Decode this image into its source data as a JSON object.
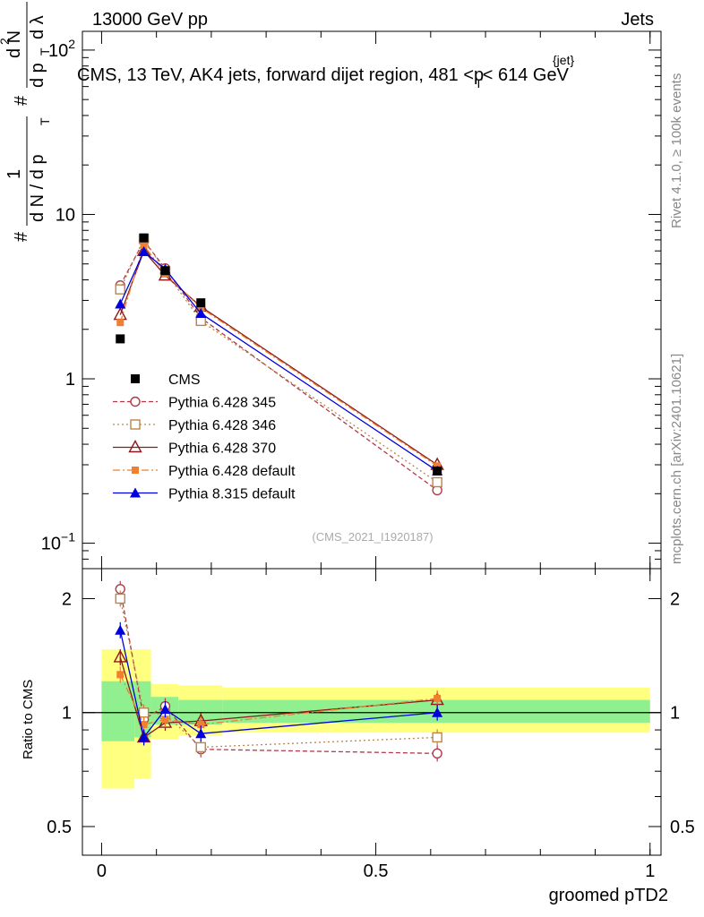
{
  "header": {
    "left": "13000 GeV pp",
    "right": "Jets"
  },
  "side_labels": {
    "rivet": "Rivet 4.1.0, ≥ 100k events",
    "mcplots": "mcplots.cern.ch [arXiv:2401.10621]"
  },
  "colors": {
    "cms": "#000000",
    "p345": "#b03a48",
    "p346": "#b8864b",
    "p370": "#8b1a1a",
    "pdef": "#f08030",
    "p8": "#0000dd",
    "band_outer": "#ffff80",
    "band_inner": "#90f090"
  },
  "chart_data": [
    {
      "type": "line",
      "title": "CMS, 13 TeV, AK4 jets, forward dijet region, 481 <p_T^{jet}< 614 GeV",
      "title_parts": {
        "main": "CMS, 13 TeV, AK4 jets, forward dijet region, 481 <p",
        "sub": "T",
        "sup": "{jet}",
        "end": "< 614 GeV"
      },
      "ylabel": "1/dN/dp_T dN^2/(dp_T dλ)",
      "ylabel_parts": {
        "hash1": "#",
        "one": "1",
        "denom": "d N / d p",
        "denomsub": "T",
        "hash2": "#",
        "num": "d N",
        "numsup": "2",
        "den2": "d p",
        "den2sub": "T",
        "dl": "d λ"
      },
      "yscale": "log",
      "ylim": [
        0.07,
        130
      ],
      "yticks": [
        "10^{−1}",
        "1",
        "10",
        "10^{2}"
      ],
      "ytick_parts": [
        {
          "base": "10",
          "exp": "−1",
          "value": 0.1
        },
        {
          "base": "1",
          "exp": "",
          "value": 1
        },
        {
          "base": "10",
          "exp": "",
          "value": 10
        },
        {
          "base": "10",
          "exp": "2",
          "value": 100
        }
      ],
      "watermark": "(CMS_2021_I1920187)",
      "x": [
        0.034,
        0.077,
        0.116,
        0.181,
        0.612
      ],
      "legend_position": "lower-left",
      "series": [
        {
          "name": "CMS",
          "key": "cms",
          "values": [
            1.75,
            7.2,
            4.55,
            2.9,
            0.275
          ]
        },
        {
          "name": "Pythia 6.428 345",
          "key": "p345",
          "values": [
            3.7,
            6.9,
            4.7,
            2.35,
            0.21
          ]
        },
        {
          "name": "Pythia 6.428 346",
          "key": "p346",
          "values": [
            3.5,
            7.1,
            4.5,
            2.25,
            0.235
          ]
        },
        {
          "name": "Pythia 6.428 370",
          "key": "p370",
          "values": [
            2.45,
            6.0,
            4.25,
            2.75,
            0.3
          ]
        },
        {
          "name": "Pythia 6.428 default",
          "key": "pdef",
          "values": [
            2.2,
            6.5,
            4.35,
            2.7,
            0.295
          ]
        },
        {
          "name": "Pythia 8.315 default",
          "key": "p8",
          "values": [
            2.85,
            5.95,
            4.65,
            2.5,
            0.275
          ]
        }
      ]
    },
    {
      "type": "line",
      "title": "",
      "xlabel": "groomed pTD2",
      "ylabel": "Ratio to CMS",
      "yscale": "log",
      "ylim": [
        0.42,
        2.4
      ],
      "yticks": [
        "0.5",
        "1",
        "2"
      ],
      "xlim": [
        -0.035,
        1.02
      ],
      "xticks": [
        "0",
        "0.5",
        "1"
      ],
      "bins": [
        {
          "lo": 0.0,
          "hi": 0.06,
          "band_outer": [
            0.63,
            1.47
          ],
          "band_inner": [
            0.84,
            1.21
          ]
        },
        {
          "lo": 0.06,
          "hi": 0.09,
          "band_outer": [
            0.67,
            1.47
          ],
          "band_inner": [
            0.86,
            1.21
          ]
        },
        {
          "lo": 0.09,
          "hi": 0.14,
          "band_outer": [
            0.85,
            1.19
          ],
          "band_inner": [
            0.93,
            1.1
          ]
        },
        {
          "lo": 0.14,
          "hi": 0.22,
          "band_outer": [
            0.87,
            1.18
          ],
          "band_inner": [
            0.93,
            1.08
          ]
        },
        {
          "lo": 0.22,
          "hi": 1.0,
          "band_outer": [
            0.885,
            1.165
          ],
          "band_inner": [
            0.94,
            1.08
          ]
        }
      ],
      "series": [
        {
          "name": "Pythia 6.428 345",
          "key": "p345",
          "values": [
            2.12,
            0.96,
            1.04,
            0.8,
            0.78
          ]
        },
        {
          "name": "Pythia 6.428 346",
          "key": "p346",
          "values": [
            2.0,
            1.0,
            0.99,
            0.81,
            0.86
          ]
        },
        {
          "name": "Pythia 6.428 370",
          "key": "p370",
          "values": [
            1.4,
            0.86,
            0.94,
            0.95,
            1.08
          ]
        },
        {
          "name": "Pythia 6.428 default",
          "key": "pdef",
          "values": [
            1.26,
            0.93,
            0.96,
            0.93,
            1.09
          ]
        },
        {
          "name": "Pythia 8.315 default",
          "key": "p8",
          "values": [
            1.65,
            0.86,
            1.02,
            0.88,
            1.0
          ]
        }
      ]
    }
  ]
}
